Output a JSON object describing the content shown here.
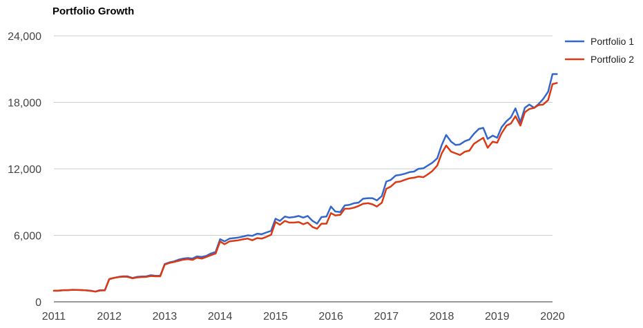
{
  "colors": {
    "portfolio_1": "#3366cc",
    "portfolio_2": "#dc3912"
  },
  "chart_data": {
    "type": "line",
    "title": "Portfolio Growth",
    "xlabel": "",
    "ylabel": "",
    "xlim": [
      2011,
      2020
    ],
    "ylim": [
      0,
      24000
    ],
    "x_ticks": [
      2011,
      2012,
      2013,
      2014,
      2015,
      2016,
      2017,
      2018,
      2019,
      2020
    ],
    "x_tick_labels": [
      "2011",
      "2012",
      "2013",
      "2014",
      "2015",
      "2016",
      "2017",
      "2018",
      "2019",
      "2020"
    ],
    "y_ticks": [
      0,
      6000,
      12000,
      18000,
      24000
    ],
    "y_tick_labels": [
      "0",
      "6,000",
      "12,000",
      "18,000",
      "24,000"
    ],
    "grid": true,
    "legend_position": "right",
    "series": [
      {
        "name": "Portfolio 1",
        "color_key": "portfolio_1",
        "points": [
          [
            2011.0,
            1000
          ],
          [
            2011.08,
            1000
          ],
          [
            2011.17,
            1050
          ],
          [
            2011.25,
            1050
          ],
          [
            2011.33,
            1080
          ],
          [
            2011.42,
            1070
          ],
          [
            2011.5,
            1060
          ],
          [
            2011.58,
            1040
          ],
          [
            2011.67,
            1000
          ],
          [
            2011.75,
            920
          ],
          [
            2011.83,
            1050
          ],
          [
            2011.92,
            1050
          ],
          [
            2012.0,
            2050
          ],
          [
            2012.08,
            2150
          ],
          [
            2012.17,
            2250
          ],
          [
            2012.25,
            2300
          ],
          [
            2012.33,
            2300
          ],
          [
            2012.42,
            2150
          ],
          [
            2012.5,
            2250
          ],
          [
            2012.58,
            2280
          ],
          [
            2012.67,
            2300
          ],
          [
            2012.75,
            2400
          ],
          [
            2012.83,
            2350
          ],
          [
            2012.92,
            2350
          ],
          [
            2013.0,
            3400
          ],
          [
            2013.08,
            3550
          ],
          [
            2013.17,
            3650
          ],
          [
            2013.25,
            3800
          ],
          [
            2013.33,
            3900
          ],
          [
            2013.42,
            3950
          ],
          [
            2013.5,
            3900
          ],
          [
            2013.58,
            4100
          ],
          [
            2013.67,
            4050
          ],
          [
            2013.75,
            4150
          ],
          [
            2013.83,
            4350
          ],
          [
            2013.92,
            4500
          ],
          [
            2014.0,
            5650
          ],
          [
            2014.08,
            5450
          ],
          [
            2014.17,
            5700
          ],
          [
            2014.25,
            5750
          ],
          [
            2014.33,
            5800
          ],
          [
            2014.42,
            5900
          ],
          [
            2014.5,
            6000
          ],
          [
            2014.58,
            5950
          ],
          [
            2014.67,
            6150
          ],
          [
            2014.75,
            6100
          ],
          [
            2014.83,
            6250
          ],
          [
            2014.92,
            6400
          ],
          [
            2015.0,
            7500
          ],
          [
            2015.08,
            7300
          ],
          [
            2015.17,
            7700
          ],
          [
            2015.25,
            7600
          ],
          [
            2015.33,
            7650
          ],
          [
            2015.42,
            7750
          ],
          [
            2015.5,
            7600
          ],
          [
            2015.58,
            7750
          ],
          [
            2015.67,
            7300
          ],
          [
            2015.75,
            7050
          ],
          [
            2015.83,
            7650
          ],
          [
            2015.92,
            7700
          ],
          [
            2016.0,
            8600
          ],
          [
            2016.08,
            8150
          ],
          [
            2016.17,
            8100
          ],
          [
            2016.25,
            8700
          ],
          [
            2016.33,
            8750
          ],
          [
            2016.42,
            8900
          ],
          [
            2016.5,
            8950
          ],
          [
            2016.58,
            9300
          ],
          [
            2016.67,
            9350
          ],
          [
            2016.75,
            9350
          ],
          [
            2016.83,
            9150
          ],
          [
            2016.92,
            9550
          ],
          [
            2017.0,
            10850
          ],
          [
            2017.08,
            11000
          ],
          [
            2017.17,
            11400
          ],
          [
            2017.25,
            11450
          ],
          [
            2017.33,
            11550
          ],
          [
            2017.42,
            11700
          ],
          [
            2017.5,
            11750
          ],
          [
            2017.58,
            12000
          ],
          [
            2017.67,
            12050
          ],
          [
            2017.75,
            12300
          ],
          [
            2017.83,
            12550
          ],
          [
            2017.92,
            12950
          ],
          [
            2018.0,
            14150
          ],
          [
            2018.08,
            15050
          ],
          [
            2018.17,
            14450
          ],
          [
            2018.25,
            14150
          ],
          [
            2018.33,
            14200
          ],
          [
            2018.42,
            14500
          ],
          [
            2018.5,
            14650
          ],
          [
            2018.58,
            15150
          ],
          [
            2018.67,
            15600
          ],
          [
            2018.75,
            15700
          ],
          [
            2018.83,
            14700
          ],
          [
            2018.92,
            15000
          ],
          [
            2019.0,
            14800
          ],
          [
            2019.08,
            15750
          ],
          [
            2019.17,
            16300
          ],
          [
            2019.25,
            16650
          ],
          [
            2019.33,
            17450
          ],
          [
            2019.42,
            16200
          ],
          [
            2019.5,
            17500
          ],
          [
            2019.58,
            17800
          ],
          [
            2019.67,
            17500
          ],
          [
            2019.75,
            17850
          ],
          [
            2019.83,
            18300
          ],
          [
            2019.92,
            18950
          ],
          [
            2020.0,
            20550
          ],
          [
            2020.08,
            20550
          ]
        ]
      },
      {
        "name": "Portfolio 2",
        "color_key": "portfolio_2",
        "points": [
          [
            2011.0,
            1000
          ],
          [
            2011.08,
            1000
          ],
          [
            2011.17,
            1050
          ],
          [
            2011.25,
            1050
          ],
          [
            2011.33,
            1080
          ],
          [
            2011.42,
            1070
          ],
          [
            2011.5,
            1060
          ],
          [
            2011.58,
            1030
          ],
          [
            2011.67,
            980
          ],
          [
            2011.75,
            920
          ],
          [
            2011.83,
            1020
          ],
          [
            2011.92,
            1030
          ],
          [
            2012.0,
            2050
          ],
          [
            2012.08,
            2150
          ],
          [
            2012.17,
            2230
          ],
          [
            2012.25,
            2270
          ],
          [
            2012.33,
            2250
          ],
          [
            2012.42,
            2120
          ],
          [
            2012.5,
            2200
          ],
          [
            2012.58,
            2230
          ],
          [
            2012.67,
            2250
          ],
          [
            2012.75,
            2330
          ],
          [
            2012.83,
            2300
          ],
          [
            2012.92,
            2300
          ],
          [
            2013.0,
            3350
          ],
          [
            2013.08,
            3500
          ],
          [
            2013.17,
            3600
          ],
          [
            2013.25,
            3700
          ],
          [
            2013.33,
            3800
          ],
          [
            2013.42,
            3850
          ],
          [
            2013.5,
            3780
          ],
          [
            2013.58,
            3980
          ],
          [
            2013.67,
            3900
          ],
          [
            2013.75,
            4050
          ],
          [
            2013.83,
            4200
          ],
          [
            2013.92,
            4350
          ],
          [
            2014.0,
            5450
          ],
          [
            2014.08,
            5200
          ],
          [
            2014.17,
            5450
          ],
          [
            2014.25,
            5500
          ],
          [
            2014.33,
            5550
          ],
          [
            2014.42,
            5650
          ],
          [
            2014.5,
            5700
          ],
          [
            2014.58,
            5550
          ],
          [
            2014.67,
            5750
          ],
          [
            2014.75,
            5700
          ],
          [
            2014.83,
            5850
          ],
          [
            2014.92,
            6050
          ],
          [
            2015.0,
            7200
          ],
          [
            2015.08,
            6950
          ],
          [
            2015.17,
            7300
          ],
          [
            2015.25,
            7150
          ],
          [
            2015.33,
            7150
          ],
          [
            2015.42,
            7200
          ],
          [
            2015.5,
            7000
          ],
          [
            2015.58,
            7150
          ],
          [
            2015.67,
            6750
          ],
          [
            2015.75,
            6600
          ],
          [
            2015.83,
            7050
          ],
          [
            2015.92,
            7050
          ],
          [
            2016.0,
            8000
          ],
          [
            2016.08,
            7800
          ],
          [
            2016.17,
            7850
          ],
          [
            2016.25,
            8400
          ],
          [
            2016.33,
            8400
          ],
          [
            2016.42,
            8500
          ],
          [
            2016.5,
            8650
          ],
          [
            2016.58,
            8850
          ],
          [
            2016.67,
            8900
          ],
          [
            2016.75,
            8800
          ],
          [
            2016.83,
            8600
          ],
          [
            2016.92,
            8950
          ],
          [
            2017.0,
            10200
          ],
          [
            2017.08,
            10400
          ],
          [
            2017.17,
            10800
          ],
          [
            2017.25,
            10850
          ],
          [
            2017.33,
            11000
          ],
          [
            2017.42,
            11150
          ],
          [
            2017.5,
            11200
          ],
          [
            2017.58,
            11300
          ],
          [
            2017.67,
            11250
          ],
          [
            2017.75,
            11500
          ],
          [
            2017.83,
            11800
          ],
          [
            2017.92,
            12300
          ],
          [
            2018.0,
            13400
          ],
          [
            2018.08,
            14100
          ],
          [
            2018.17,
            13550
          ],
          [
            2018.25,
            13400
          ],
          [
            2018.33,
            13250
          ],
          [
            2018.42,
            13550
          ],
          [
            2018.5,
            13650
          ],
          [
            2018.58,
            14250
          ],
          [
            2018.67,
            14550
          ],
          [
            2018.75,
            14800
          ],
          [
            2018.83,
            13900
          ],
          [
            2018.92,
            14450
          ],
          [
            2019.0,
            14350
          ],
          [
            2019.08,
            15200
          ],
          [
            2019.17,
            15900
          ],
          [
            2019.25,
            16100
          ],
          [
            2019.33,
            16750
          ],
          [
            2019.42,
            15900
          ],
          [
            2019.5,
            17100
          ],
          [
            2019.58,
            17400
          ],
          [
            2019.67,
            17500
          ],
          [
            2019.75,
            17750
          ],
          [
            2019.83,
            17800
          ],
          [
            2019.92,
            18200
          ],
          [
            2020.0,
            19650
          ],
          [
            2020.08,
            19750
          ]
        ]
      }
    ]
  }
}
